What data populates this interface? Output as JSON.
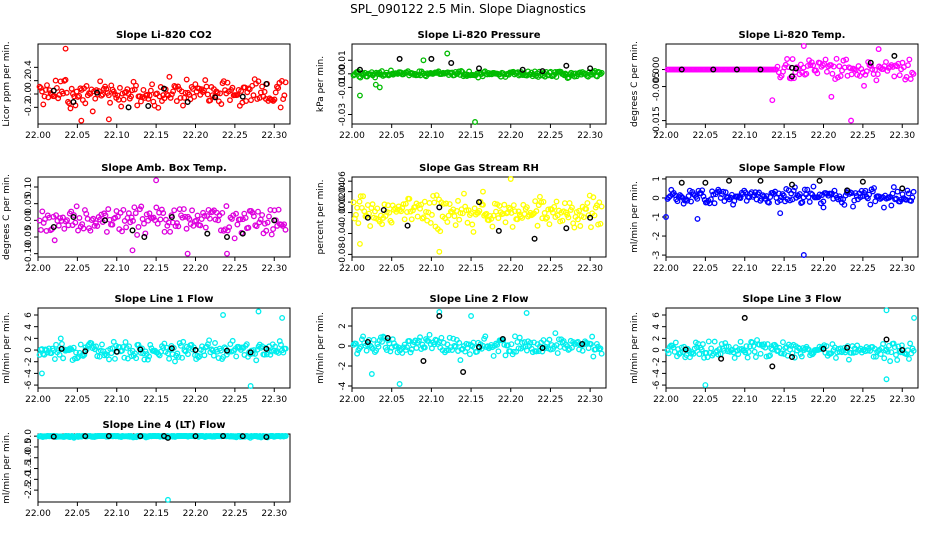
{
  "figure_title": "SPL_090122  2.5 Min. Slope Diagnostics",
  "chart_data": [
    {
      "type": "scatter",
      "title": "Slope Li-820 CO2",
      "ylabel": "Licor ppm per min.",
      "color": "#ff0000",
      "xlim": [
        22.0,
        22.32
      ],
      "xticks": [
        "22.00",
        "22.05",
        "22.10",
        "22.15",
        "22.20",
        "22.25",
        "22.30"
      ],
      "ylim": [
        -0.45,
        0.75
      ],
      "yticks": [
        "-0.2",
        "0.0",
        "0.2",
        "0.4"
      ],
      "seed": 1,
      "center": 0.0,
      "spread": 0.18,
      "n": 200,
      "outliers": [
        [
          22.035,
          0.68
        ],
        [
          22.055,
          -0.4
        ],
        [
          22.09,
          -0.38
        ]
      ],
      "black": [
        [
          22.02,
          0.05
        ],
        [
          22.045,
          -0.12
        ],
        [
          22.075,
          0.02
        ],
        [
          22.115,
          -0.2
        ],
        [
          22.14,
          -0.18
        ],
        [
          22.16,
          0.08
        ],
        [
          22.19,
          -0.12
        ],
        [
          22.225,
          -0.05
        ],
        [
          22.26,
          -0.04
        ],
        [
          22.29,
          0.15
        ]
      ]
    },
    {
      "type": "scatter",
      "title": "Slope Li-820 Pressure",
      "ylabel": "kPa per min.",
      "color": "#00bb00",
      "xlim": [
        22.0,
        22.32
      ],
      "xticks": [
        "22.00",
        "22.05",
        "22.10",
        "22.15",
        "22.20",
        "22.25",
        "22.30"
      ],
      "ylim": [
        -0.037,
        0.022
      ],
      "yticks": [
        "-0.03",
        "-0.01",
        "0.00",
        "0.01"
      ],
      "seed": 2,
      "center": 0.0,
      "spread": 0.002,
      "n": 220,
      "outliers": [
        [
          22.01,
          -0.016
        ],
        [
          22.03,
          -0.008
        ],
        [
          22.035,
          -0.01
        ],
        [
          22.155,
          -0.036
        ],
        [
          22.09,
          0.01
        ],
        [
          22.12,
          0.015
        ]
      ],
      "black": [
        [
          22.01,
          0.003
        ],
        [
          22.06,
          0.011
        ],
        [
          22.1,
          0.011
        ],
        [
          22.125,
          0.008
        ],
        [
          22.16,
          0.004
        ],
        [
          22.215,
          0.003
        ],
        [
          22.24,
          0.002
        ],
        [
          22.27,
          0.006
        ],
        [
          22.3,
          0.004
        ]
      ]
    },
    {
      "type": "scatter",
      "title": "Slope Li-820 Temp.",
      "ylabel": "degrees C per min.",
      "color": "#ff00ff",
      "xlim": [
        22.0,
        22.32
      ],
      "xticks": [
        "22.00",
        "22.05",
        "22.10",
        "22.15",
        "22.20",
        "22.25",
        "22.30"
      ],
      "ylim": [
        -0.016,
        0.0075
      ],
      "yticks": [
        "-0.015",
        "-0.005",
        "0.000"
      ],
      "seed": 3,
      "center": 0.0,
      "spread": 0.0,
      "n": 180,
      "flat_until": 22.14,
      "spread2": 0.003,
      "outliers": [
        [
          22.175,
          0.007
        ],
        [
          22.235,
          -0.015
        ],
        [
          22.135,
          -0.009
        ],
        [
          22.21,
          -0.008
        ],
        [
          22.27,
          0.006
        ]
      ],
      "black": [
        [
          22.02,
          0.0
        ],
        [
          22.06,
          0.0
        ],
        [
          22.09,
          0.0
        ],
        [
          22.12,
          0.0
        ],
        [
          22.16,
          0.0005
        ],
        [
          22.165,
          0.0003
        ],
        [
          22.16,
          -0.002
        ],
        [
          22.26,
          0.002
        ],
        [
          22.29,
          0.004
        ]
      ]
    },
    {
      "type": "scatter",
      "title": "Slope Amb. Box Temp.",
      "ylabel": "degrees C per min.",
      "color": "#dd00dd",
      "xlim": [
        22.0,
        22.32
      ],
      "xticks": [
        "22.00",
        "22.05",
        "22.10",
        "22.15",
        "22.20",
        "22.25",
        "22.30"
      ],
      "ylim": [
        -0.11,
        0.13
      ],
      "yticks": [
        "-0.10",
        "-0.05",
        "0.00",
        "0.05",
        "0.10"
      ],
      "seed": 4,
      "center": 0.0,
      "spread": 0.04,
      "n": 180,
      "outliers": [
        [
          22.15,
          0.12
        ],
        [
          22.19,
          -0.1
        ],
        [
          22.24,
          -0.1
        ],
        [
          22.12,
          -0.09
        ]
      ],
      "black": [
        [
          22.02,
          -0.02
        ],
        [
          22.045,
          0.01
        ],
        [
          22.085,
          0.0
        ],
        [
          22.12,
          -0.03
        ],
        [
          22.135,
          -0.05
        ],
        [
          22.17,
          0.01
        ],
        [
          22.215,
          -0.04
        ],
        [
          22.24,
          -0.05
        ],
        [
          22.26,
          -0.04
        ],
        [
          22.3,
          0.0
        ]
      ]
    },
    {
      "type": "scatter",
      "title": "Slope Gas Stream RH",
      "ylabel": "percent per min.",
      "color": "#ffff00",
      "xlim": [
        22.0,
        22.32
      ],
      "xticks": [
        "22.00",
        "22.05",
        "22.10",
        "22.15",
        "22.20",
        "22.25",
        "22.30"
      ],
      "ylim": [
        -0.085,
        0.068
      ],
      "yticks": [
        "-0.08",
        "-0.04",
        "0.00",
        "0.02",
        "0.04",
        "0.06"
      ],
      "seed": 5,
      "center": 0.0,
      "spread": 0.025,
      "n": 210,
      "outliers": [
        [
          22.2,
          0.065
        ],
        [
          22.11,
          -0.075
        ],
        [
          22.01,
          -0.06
        ],
        [
          22.165,
          0.04
        ]
      ],
      "black": [
        [
          22.02,
          -0.01
        ],
        [
          22.04,
          0.005
        ],
        [
          22.07,
          -0.025
        ],
        [
          22.11,
          0.01
        ],
        [
          22.16,
          0.02
        ],
        [
          22.185,
          -0.035
        ],
        [
          22.23,
          -0.05
        ],
        [
          22.27,
          -0.03
        ],
        [
          22.3,
          -0.01
        ]
      ]
    },
    {
      "type": "scatter",
      "title": "Slope Sample Flow",
      "ylabel": "ml/min per min.",
      "color": "#0000ff",
      "xlim": [
        22.0,
        22.32
      ],
      "xticks": [
        "22.00",
        "22.05",
        "22.10",
        "22.15",
        "22.20",
        "22.25",
        "22.30"
      ],
      "ylim": [
        -3.1,
        1.1
      ],
      "yticks": [
        "-3",
        "-2",
        "-1",
        "0",
        "1"
      ],
      "seed": 6,
      "center": 0.1,
      "spread": 0.35,
      "n": 200,
      "outliers": [
        [
          22.175,
          -3.0
        ],
        [
          22.0,
          -1.0
        ],
        [
          22.04,
          -1.1
        ],
        [
          22.145,
          -0.8
        ],
        [
          22.2,
          -0.5
        ]
      ],
      "black": [
        [
          22.02,
          0.8
        ],
        [
          22.05,
          0.8
        ],
        [
          22.08,
          0.9
        ],
        [
          22.12,
          0.9
        ],
        [
          22.16,
          0.7
        ],
        [
          22.195,
          0.9
        ],
        [
          22.23,
          0.4
        ],
        [
          22.25,
          0.85
        ],
        [
          22.3,
          0.5
        ]
      ]
    },
    {
      "type": "scatter",
      "title": "Slope Line 1 Flow",
      "ylabel": "ml/min per min.",
      "color": "#00eeee",
      "xlim": [
        22.0,
        22.32
      ],
      "xticks": [
        "22.00",
        "22.05",
        "22.10",
        "22.15",
        "22.20",
        "22.25",
        "22.30"
      ],
      "ylim": [
        -6.5,
        7.2
      ],
      "yticks": [
        "-6",
        "-4",
        "-2",
        "0",
        "2",
        "4",
        "6"
      ],
      "seed": 7,
      "center": 0.0,
      "spread": 1.3,
      "n": 210,
      "outliers": [
        [
          22.27,
          -6.2
        ],
        [
          22.235,
          6.0
        ],
        [
          22.005,
          -4.0
        ],
        [
          22.28,
          6.6
        ],
        [
          22.31,
          5.5
        ]
      ],
      "black": [
        [
          22.03,
          0.2
        ],
        [
          22.06,
          -0.2
        ],
        [
          22.1,
          -0.3
        ],
        [
          22.13,
          0.1
        ],
        [
          22.17,
          0.3
        ],
        [
          22.2,
          0.0
        ],
        [
          22.24,
          -0.1
        ],
        [
          22.27,
          -0.4
        ],
        [
          22.29,
          0.2
        ]
      ]
    },
    {
      "type": "scatter",
      "title": "Slope Line 2 Flow",
      "ylabel": "ml/min per min.",
      "color": "#00eeee",
      "xlim": [
        22.0,
        22.32
      ],
      "xticks": [
        "22.00",
        "22.05",
        "22.10",
        "22.15",
        "22.20",
        "22.25",
        "22.30"
      ],
      "ylim": [
        -4.2,
        3.8
      ],
      "yticks": [
        "-4",
        "-2",
        "0",
        "2"
      ],
      "seed": 8,
      "center": 0.0,
      "spread": 0.8,
      "n": 210,
      "outliers": [
        [
          22.22,
          3.3
        ],
        [
          22.06,
          -3.8
        ],
        [
          22.025,
          -2.8
        ],
        [
          22.15,
          3.0
        ],
        [
          22.11,
          3.4
        ]
      ],
      "black": [
        [
          22.02,
          0.4
        ],
        [
          22.045,
          0.8
        ],
        [
          22.09,
          -1.5
        ],
        [
          22.11,
          3.0
        ],
        [
          22.14,
          -2.6
        ],
        [
          22.16,
          -0.1
        ],
        [
          22.19,
          0.7
        ],
        [
          22.24,
          -0.2
        ],
        [
          22.29,
          0.2
        ]
      ]
    },
    {
      "type": "scatter",
      "title": "Slope Line 3 Flow",
      "ylabel": "ml/min per min.",
      "color": "#00eeee",
      "xlim": [
        22.0,
        22.32
      ],
      "xticks": [
        "22.00",
        "22.05",
        "22.10",
        "22.15",
        "22.20",
        "22.25",
        "22.30"
      ],
      "ylim": [
        -6.5,
        7.2
      ],
      "yticks": [
        "-6",
        "-4",
        "-2",
        "0",
        "2",
        "4",
        "6"
      ],
      "seed": 9,
      "center": 0.0,
      "spread": 1.3,
      "n": 210,
      "outliers": [
        [
          22.05,
          -6.0
        ],
        [
          22.28,
          6.8
        ],
        [
          22.315,
          5.5
        ],
        [
          22.28,
          -5.0
        ]
      ],
      "black": [
        [
          22.025,
          0.1
        ],
        [
          22.07,
          -1.5
        ],
        [
          22.1,
          5.5
        ],
        [
          22.135,
          -2.8
        ],
        [
          22.16,
          -1.2
        ],
        [
          22.2,
          0.2
        ],
        [
          22.23,
          0.4
        ],
        [
          22.28,
          1.8
        ],
        [
          22.3,
          0.0
        ]
      ]
    },
    {
      "type": "scatter",
      "title": "Slope Line 4 (LT) Flow",
      "ylabel": "ml/min per min.",
      "color": "#00eeee",
      "xlim": [
        22.0,
        22.32
      ],
      "xticks": [
        "22.00",
        "22.05",
        "22.10",
        "22.15",
        "22.20",
        "22.25",
        "22.30"
      ],
      "ylim": [
        -3.05,
        0.1
      ],
      "yticks": [
        "-2.5",
        "-2.0",
        "-1.5",
        "-1.0",
        "-0.5",
        "0.0"
      ],
      "seed": 10,
      "center": 0.0,
      "spread": 0.05,
      "n": 230,
      "outliers": [
        [
          22.165,
          -2.95
        ]
      ],
      "black": [
        [
          22.02,
          -0.02
        ],
        [
          22.06,
          0.0
        ],
        [
          22.09,
          0.03
        ],
        [
          22.13,
          0.0
        ],
        [
          22.16,
          0.02
        ],
        [
          22.165,
          -0.08
        ],
        [
          22.2,
          0.0
        ],
        [
          22.235,
          0.01
        ],
        [
          22.26,
          0.0
        ],
        [
          22.29,
          -0.04
        ]
      ]
    }
  ]
}
